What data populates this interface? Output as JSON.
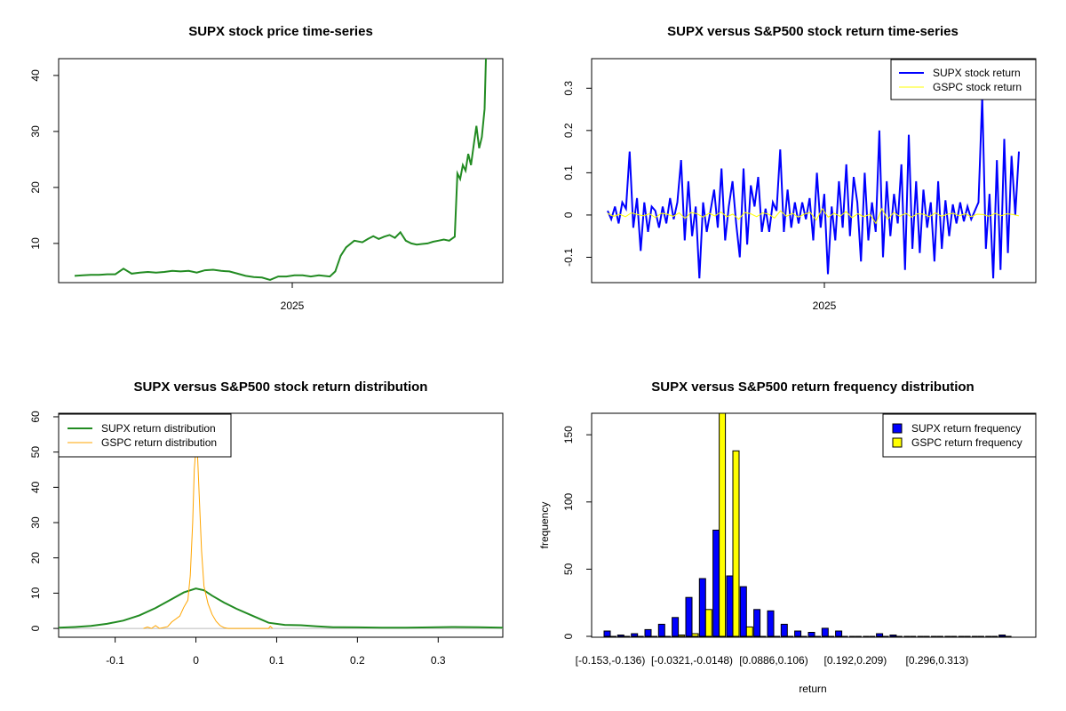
{
  "chart_data": [
    {
      "type": "line",
      "title": "SUPX stock price time-series",
      "x_tick_labels": [
        "2025"
      ],
      "y_ticks": [
        10,
        20,
        30,
        40
      ],
      "ylim": [
        3,
        43
      ],
      "grid": false,
      "series": [
        {
          "color": "#228B22",
          "points": [
            [
              0,
              4.2
            ],
            [
              3,
              4.3
            ],
            [
              6,
              4.4
            ],
            [
              9,
              4.4
            ],
            [
              12,
              4.5
            ],
            [
              15,
              4.5
            ],
            [
              18,
              5.5
            ],
            [
              21,
              4.6
            ],
            [
              24,
              4.8
            ],
            [
              27,
              4.9
            ],
            [
              30,
              4.8
            ],
            [
              33,
              4.9
            ],
            [
              36,
              5.1
            ],
            [
              39,
              5.0
            ],
            [
              42,
              5.1
            ],
            [
              45,
              4.8
            ],
            [
              48,
              5.2
            ],
            [
              51,
              5.3
            ],
            [
              54,
              5.1
            ],
            [
              57,
              5.0
            ],
            [
              60,
              4.6
            ],
            [
              63,
              4.2
            ],
            [
              66,
              4.0
            ],
            [
              69,
              3.9
            ],
            [
              72,
              3.5
            ],
            [
              75,
              4.1
            ],
            [
              78,
              4.1
            ],
            [
              81,
              4.3
            ],
            [
              84,
              4.3
            ],
            [
              87,
              4.1
            ],
            [
              90,
              4.3
            ],
            [
              94,
              4.1
            ],
            [
              96,
              5.0
            ],
            [
              98,
              7.8
            ],
            [
              100,
              9.3
            ],
            [
              103,
              10.5
            ],
            [
              106,
              10.2
            ],
            [
              108,
              10.8
            ],
            [
              110,
              11.3
            ],
            [
              112,
              10.8
            ],
            [
              114,
              11.2
            ],
            [
              116,
              11.5
            ],
            [
              118,
              11.0
            ],
            [
              120,
              12.0
            ],
            [
              122,
              10.5
            ],
            [
              124,
              10.0
            ],
            [
              126,
              9.8
            ],
            [
              128,
              9.9
            ],
            [
              130,
              10.0
            ],
            [
              132,
              10.3
            ],
            [
              134,
              10.5
            ],
            [
              136,
              10.7
            ],
            [
              138,
              10.5
            ],
            [
              140,
              11.2
            ],
            [
              141,
              22.5
            ],
            [
              142,
              21.5
            ],
            [
              143,
              24.0
            ],
            [
              144,
              23.0
            ],
            [
              145,
              26.0
            ],
            [
              146,
              24.0
            ],
            [
              147,
              27.5
            ],
            [
              148,
              31.0
            ],
            [
              149,
              27.0
            ],
            [
              150,
              29.0
            ],
            [
              151,
              34.0
            ],
            [
              151.5,
              43.0
            ]
          ]
        }
      ]
    },
    {
      "type": "line",
      "title": "SUPX versus S&P500 stock return time-series",
      "x_tick_labels": [
        "2025"
      ],
      "y_ticks": [
        -0.1,
        0.0,
        0.1,
        0.2,
        0.3
      ],
      "ylim": [
        -0.16,
        0.37
      ],
      "grid": false,
      "legend_position": "top-right",
      "series": [
        {
          "name": "SUPX stock return",
          "color": "#0000FF",
          "values": [
            0.01,
            -0.01,
            0.02,
            -0.02,
            0.03,
            0.015,
            0.15,
            -0.03,
            0.04,
            -0.085,
            0.03,
            -0.04,
            0.02,
            0.01,
            -0.03,
            0.02,
            -0.02,
            0.04,
            -0.01,
            0.03,
            0.13,
            -0.06,
            0.08,
            -0.05,
            0.02,
            -0.15,
            0.03,
            -0.04,
            0.01,
            0.06,
            -0.03,
            0.11,
            -0.06,
            0.02,
            0.08,
            -0.02,
            -0.1,
            0.11,
            -0.07,
            0.07,
            0.02,
            0.09,
            -0.04,
            0.015,
            -0.04,
            0.03,
            0.01,
            0.155,
            -0.04,
            0.06,
            -0.03,
            0.03,
            -0.02,
            0.03,
            -0.01,
            0.04,
            -0.06,
            0.1,
            -0.03,
            0.05,
            -0.14,
            0.02,
            -0.06,
            0.08,
            -0.03,
            0.12,
            -0.05,
            0.09,
            0.03,
            -0.11,
            0.1,
            -0.06,
            0.03,
            -0.04,
            0.2,
            -0.1,
            0.08,
            -0.05,
            0.05,
            -0.02,
            0.12,
            -0.13,
            0.19,
            -0.08,
            0.08,
            -0.09,
            0.06,
            -0.03,
            0.03,
            -0.11,
            0.08,
            -0.08,
            0.035,
            -0.05,
            0.025,
            -0.02,
            0.03,
            -0.015,
            0.02,
            -0.01,
            0.01,
            0.03,
            0.28,
            -0.08,
            0.05,
            -0.15,
            0.13,
            -0.13,
            0.18,
            -0.09,
            0.14,
            0.0,
            0.15
          ]
        },
        {
          "name": "GSPC stock return",
          "color": "#FFFF00",
          "values": [
            0.004,
            -0.003,
            0.002,
            -0.004,
            0.005,
            0.001,
            -0.002,
            0.003,
            -0.006,
            0.004,
            0.002,
            -0.003,
            0.005,
            -0.008,
            0.006,
            0.003,
            -0.005,
            0.004,
            -0.002,
            0.007,
            -0.004,
            0.002,
            -0.01,
            0.006,
            0.003,
            -0.004,
            0.005,
            0.002,
            -0.007,
            0.01,
            -0.003,
            0.004,
            -0.005,
            0.002,
            0.006,
            -0.012,
            0.015,
            -0.005,
            0.004,
            -0.003,
            0.008,
            -0.006,
            0.003,
            -0.004,
            0.002,
            -0.02,
            0.015,
            -0.01,
            0.006,
            -0.003,
            0.004,
            -0.005,
            0.003,
            0.002,
            -0.004,
            0.005,
            -0.003,
            0.002,
            0.004,
            -0.002,
            0.003,
            -0.004,
            0.002,
            0.001,
            -0.003,
            0.004,
            -0.002,
            0.003,
            0.001,
            -0.002
          ]
        }
      ]
    },
    {
      "type": "line",
      "title": "SUPX versus S&P500 stock return distribution",
      "x_ticks": [
        -0.1,
        0.0,
        0.1,
        0.2,
        0.3
      ],
      "y_ticks": [
        0,
        10,
        20,
        30,
        40,
        50,
        60
      ],
      "xlim": [
        -0.17,
        0.38
      ],
      "ylim": [
        -2.5,
        61
      ],
      "grid": false,
      "legend_position": "top-left",
      "series": [
        {
          "name": "SUPX return distribution",
          "color": "#228B22",
          "points": [
            [
              -0.17,
              0.2
            ],
            [
              -0.15,
              0.4
            ],
            [
              -0.13,
              0.7
            ],
            [
              -0.11,
              1.3
            ],
            [
              -0.09,
              2.2
            ],
            [
              -0.07,
              3.7
            ],
            [
              -0.05,
              5.8
            ],
            [
              -0.03,
              8.3
            ],
            [
              -0.015,
              10.2
            ],
            [
              0.0,
              11.3
            ],
            [
              0.01,
              10.8
            ],
            [
              0.02,
              9.3
            ],
            [
              0.035,
              7.3
            ],
            [
              0.05,
              5.6
            ],
            [
              0.07,
              3.6
            ],
            [
              0.09,
              1.6
            ],
            [
              0.11,
              1.0
            ],
            [
              0.13,
              0.9
            ],
            [
              0.15,
              0.6
            ],
            [
              0.17,
              0.35
            ],
            [
              0.2,
              0.3
            ],
            [
              0.23,
              0.2
            ],
            [
              0.26,
              0.2
            ],
            [
              0.29,
              0.3
            ],
            [
              0.32,
              0.4
            ],
            [
              0.35,
              0.35
            ],
            [
              0.38,
              0.2
            ]
          ]
        },
        {
          "name": "GSPC return distribution",
          "color": "#FFA500",
          "points": [
            [
              -0.065,
              0.0
            ],
            [
              -0.06,
              0.4
            ],
            [
              -0.055,
              0.0
            ],
            [
              -0.05,
              0.8
            ],
            [
              -0.045,
              0.0
            ],
            [
              -0.035,
              0.5
            ],
            [
              -0.03,
              1.8
            ],
            [
              -0.02,
              3.5
            ],
            [
              -0.015,
              6.0
            ],
            [
              -0.01,
              8.0
            ],
            [
              -0.007,
              15.0
            ],
            [
              -0.004,
              30.0
            ],
            [
              -0.002,
              45.0
            ],
            [
              0.0,
              51.0
            ],
            [
              0.002,
              49.0
            ],
            [
              0.004,
              38.0
            ],
            [
              0.007,
              22.0
            ],
            [
              0.01,
              12.0
            ],
            [
              0.015,
              7.0
            ],
            [
              0.02,
              4.0
            ],
            [
              0.025,
              2.0
            ],
            [
              0.03,
              0.8
            ],
            [
              0.035,
              0.2
            ],
            [
              0.04,
              0.0
            ],
            [
              0.09,
              0.0
            ],
            [
              0.092,
              0.6
            ],
            [
              0.095,
              0.0
            ]
          ]
        }
      ]
    },
    {
      "type": "bar",
      "title": "SUPX versus S&P500 return frequency distribution",
      "xlabel": "return",
      "ylabel": "frequency",
      "y_ticks": [
        0,
        50,
        100,
        150
      ],
      "ylim": [
        0,
        166
      ],
      "grid": false,
      "legend_position": "top-right",
      "x_tick_labels": [
        "[-0.153,-0.136)",
        "[-0.0321,-0.0148)",
        "[0.0886,0.106)",
        "[0.192,0.209)",
        "[0.296,0.313)"
      ],
      "series": [
        {
          "name": "SUPX return frequency",
          "color": "#0000FF",
          "values": [
            4,
            1,
            2,
            5,
            9,
            14,
            29,
            43,
            79,
            45,
            37,
            20,
            19,
            9,
            4,
            3,
            6,
            4,
            0,
            0,
            2,
            1,
            0,
            0,
            0,
            0,
            0,
            0,
            0,
            1
          ]
        },
        {
          "name": "GSPC return frequency",
          "color": "#FFFF00",
          "values": [
            0,
            0,
            0,
            0,
            0,
            1,
            2,
            20,
            170,
            138,
            7,
            0,
            0,
            0,
            0,
            0,
            0,
            0,
            0,
            0,
            0,
            0,
            0,
            0,
            0,
            0,
            0,
            0,
            0,
            0
          ]
        }
      ]
    }
  ]
}
